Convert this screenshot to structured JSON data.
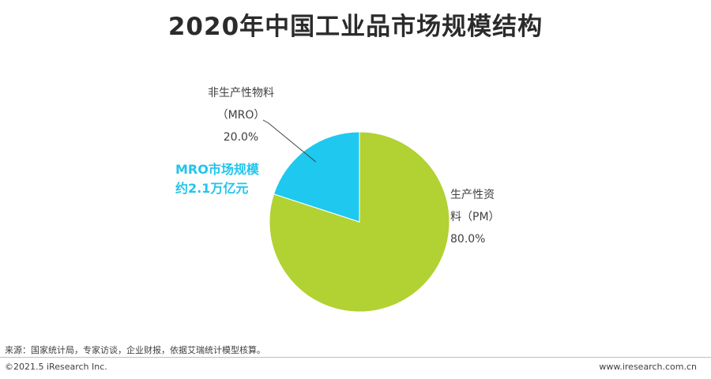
{
  "title": "2020年中国工业品市场规模结构",
  "chart_data": {
    "type": "pie",
    "title": "2020年中国工业品市场规模结构",
    "slices": [
      {
        "name": "生产性资料（PM）",
        "value": 80.0,
        "label_line1": "生产性资",
        "label_line2": "料（PM）",
        "pct_label": "80.0%",
        "color": "#b1d232"
      },
      {
        "name": "非生产性物料（MRO）",
        "value": 20.0,
        "label_line1": "非生产性物料",
        "label_line2": "（MRO）",
        "pct_label": "20.0%",
        "color": "#1fc8ef"
      }
    ],
    "annotation": {
      "line1": "MRO市场规模",
      "line2": "约2.1万亿元",
      "color": "#22c4ec"
    }
  },
  "footer": {
    "source": "来源：国家统计局，专家访谈，企业财报，依据艾瑞统计模型核算。",
    "copyright": "©2021.5 iResearch Inc.",
    "website": "www.iresearch.com.cn"
  }
}
